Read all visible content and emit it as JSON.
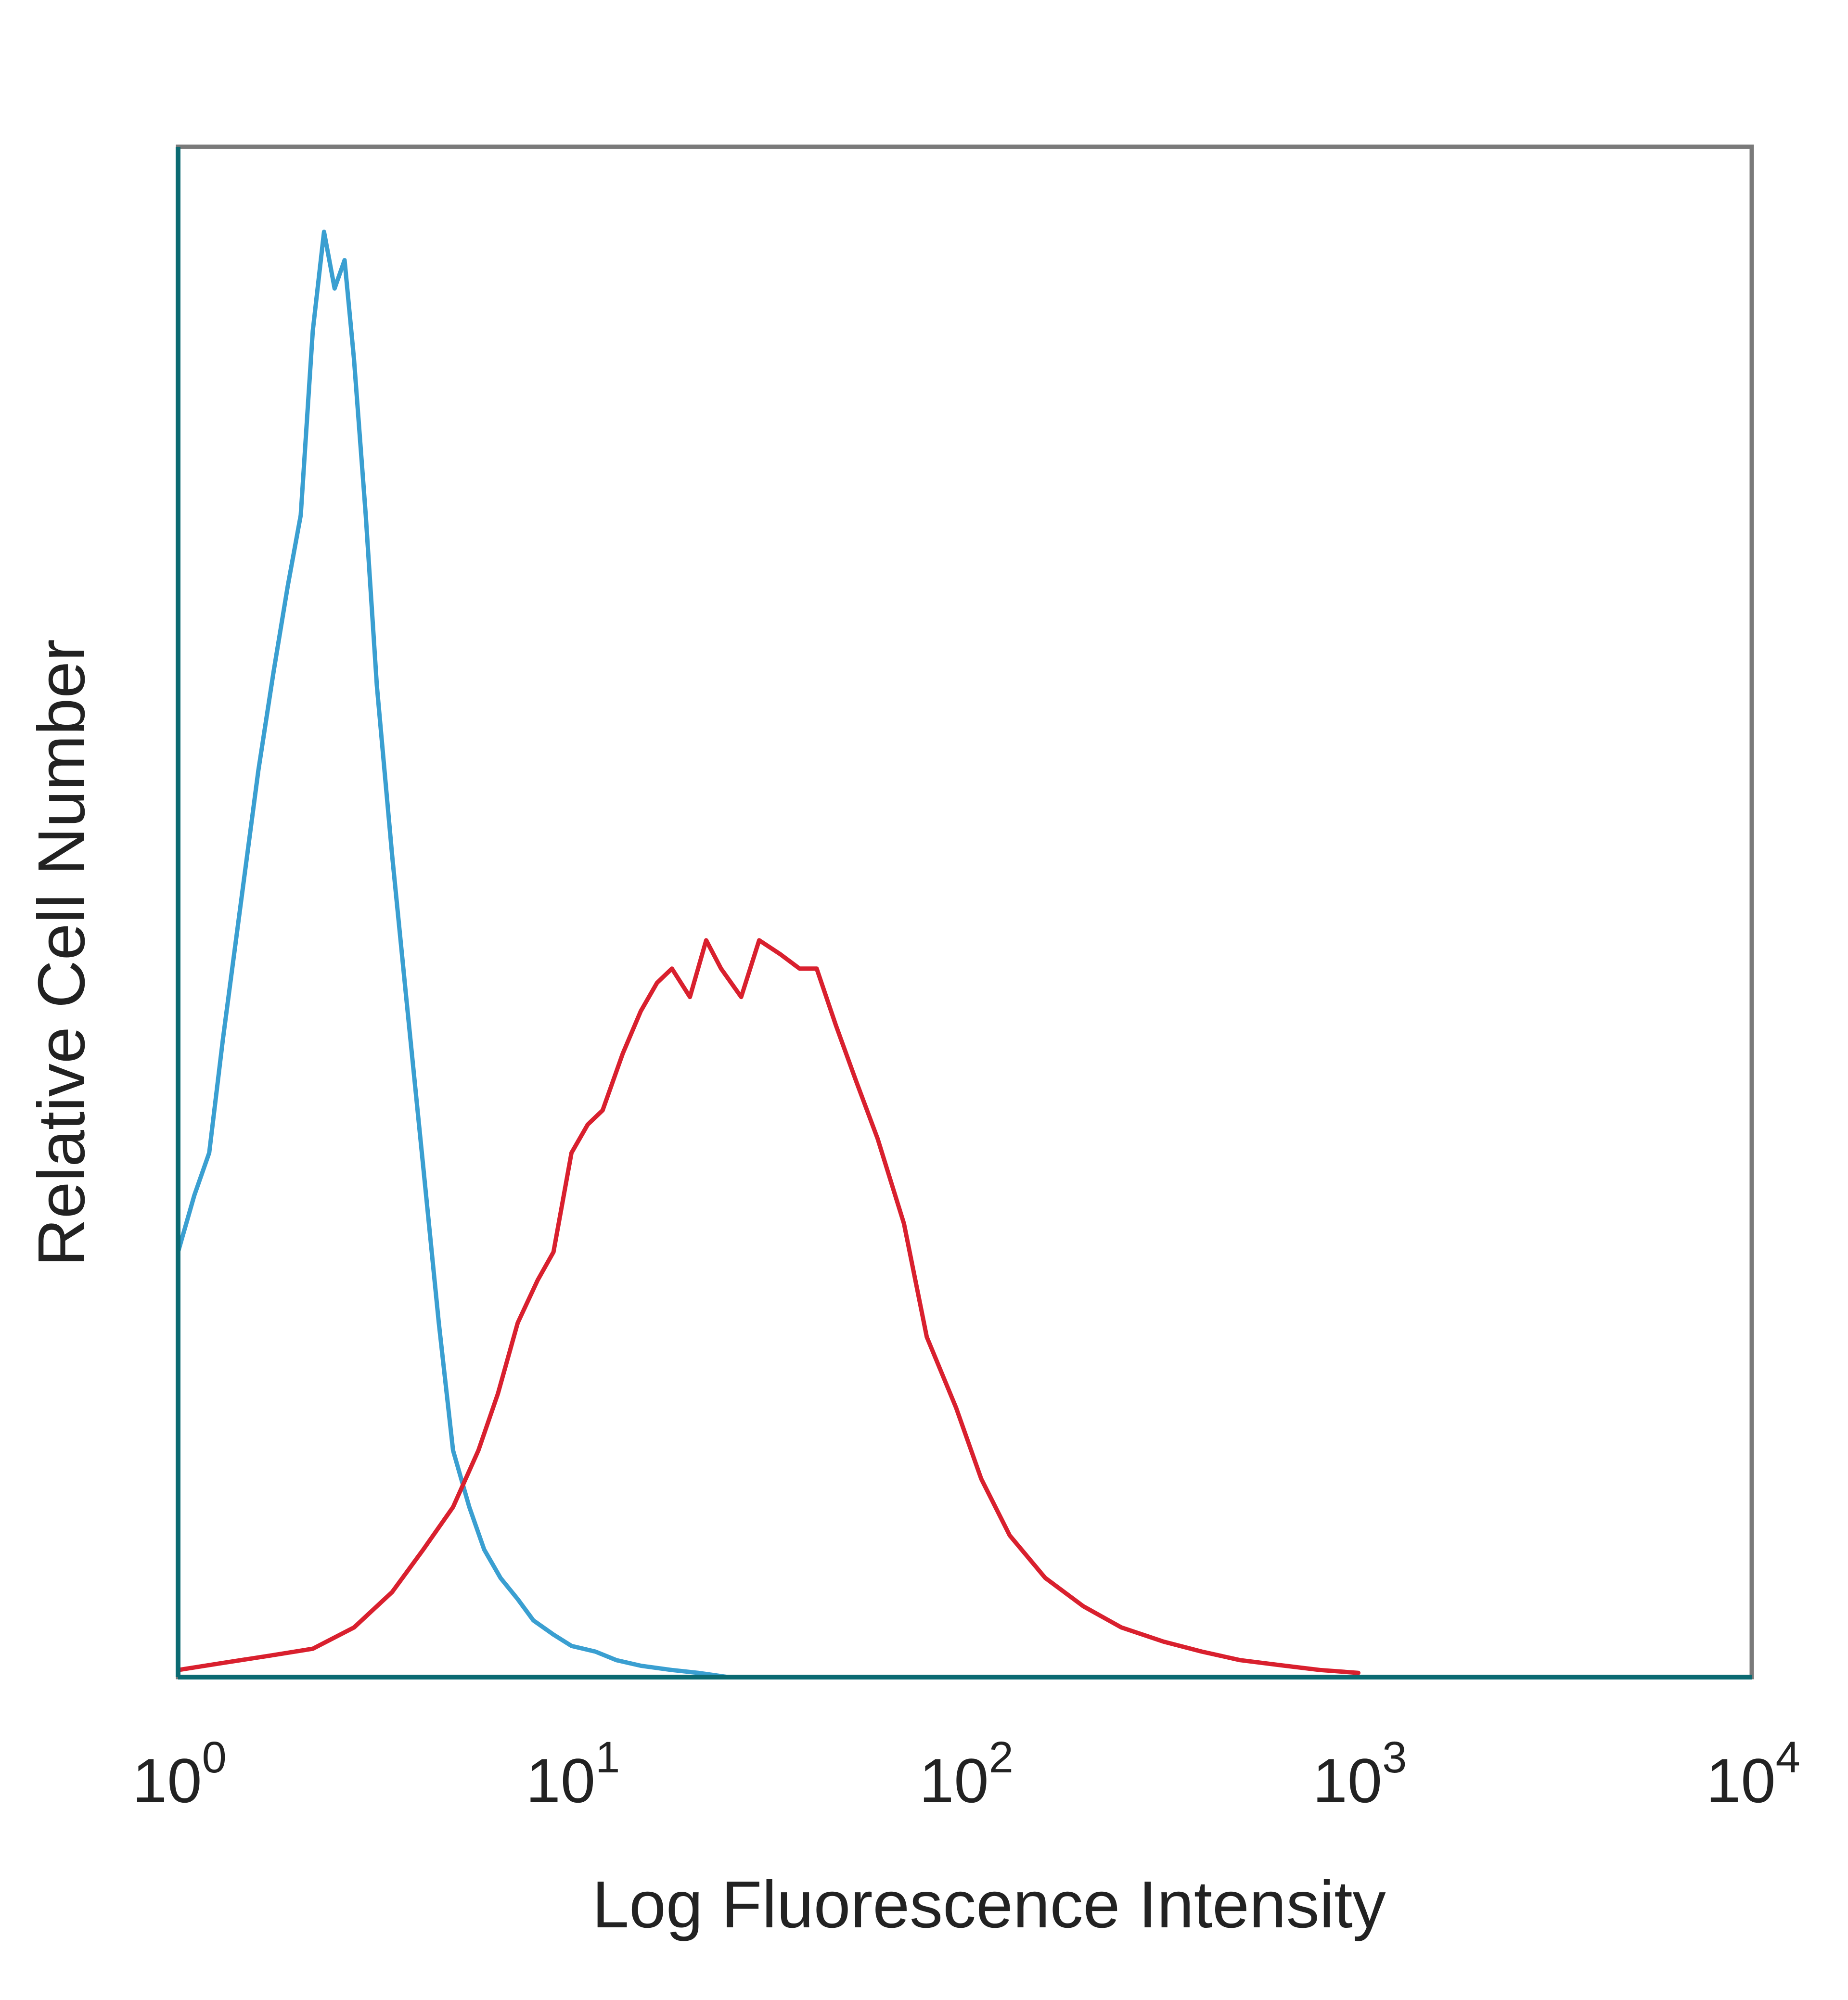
{
  "chart_data": {
    "type": "line",
    "title": "",
    "xlabel": "Log Fluorescence Intensity",
    "ylabel": "Relative Cell Number",
    "x_scale": "log",
    "xlim": [
      1,
      10000
    ],
    "ylim": [
      0,
      1.08
    ],
    "grid": false,
    "legend": "none",
    "x_ticks": [
      {
        "base": "10",
        "exp": "0",
        "value": 1
      },
      {
        "base": "10",
        "exp": "1",
        "value": 10
      },
      {
        "base": "10",
        "exp": "2",
        "value": 100
      },
      {
        "base": "10",
        "exp": "3",
        "value": 1000
      },
      {
        "base": "10",
        "exp": "4",
        "value": 10000
      }
    ],
    "series": [
      {
        "color": "#3a9fd1",
        "x": [
          1.0,
          1.1,
          1.2,
          1.3,
          1.45,
          1.6,
          1.75,
          1.9,
          2.05,
          2.2,
          2.35,
          2.5,
          2.65,
          2.8,
          3.0,
          3.2,
          3.5,
          3.8,
          4.2,
          4.6,
          5.0,
          5.5,
          6.0,
          6.6,
          7.3,
          8.0,
          9.0,
          10.0,
          11.5,
          13.0,
          15.0,
          18.0,
          21.0,
          25.0
        ],
        "values": [
          0.3,
          0.34,
          0.37,
          0.45,
          0.55,
          0.64,
          0.71,
          0.77,
          0.82,
          0.95,
          1.02,
          0.98,
          1.0,
          0.93,
          0.82,
          0.7,
          0.58,
          0.48,
          0.36,
          0.25,
          0.16,
          0.12,
          0.09,
          0.07,
          0.055,
          0.04,
          0.03,
          0.022,
          0.018,
          0.012,
          0.008,
          0.005,
          0.003,
          0.0
        ]
      },
      {
        "color": "#d9202e",
        "x": [
          1.0,
          1.3,
          1.7,
          2.2,
          2.8,
          3.5,
          4.2,
          5.0,
          5.8,
          6.5,
          7.3,
          8.2,
          9.0,
          10.0,
          11.0,
          12.0,
          13.5,
          15.0,
          16.5,
          18.0,
          20.0,
          22.0,
          24.0,
          27.0,
          30.0,
          34.0,
          38.0,
          42.0,
          47.0,
          53.0,
          60.0,
          70.0,
          80.0,
          95.0,
          110.0,
          130.0,
          160.0,
          200.0,
          250.0,
          320.0,
          400.0,
          500.0,
          650.0,
          800.0,
          1000.0
        ],
        "values": [
          0.005,
          0.01,
          0.015,
          0.02,
          0.035,
          0.06,
          0.09,
          0.12,
          0.16,
          0.2,
          0.25,
          0.28,
          0.3,
          0.37,
          0.39,
          0.4,
          0.44,
          0.47,
          0.49,
          0.5,
          0.48,
          0.52,
          0.5,
          0.48,
          0.52,
          0.51,
          0.5,
          0.5,
          0.46,
          0.42,
          0.38,
          0.32,
          0.24,
          0.19,
          0.14,
          0.1,
          0.07,
          0.05,
          0.035,
          0.025,
          0.018,
          0.012,
          0.008,
          0.005,
          0.003
        ]
      }
    ]
  }
}
